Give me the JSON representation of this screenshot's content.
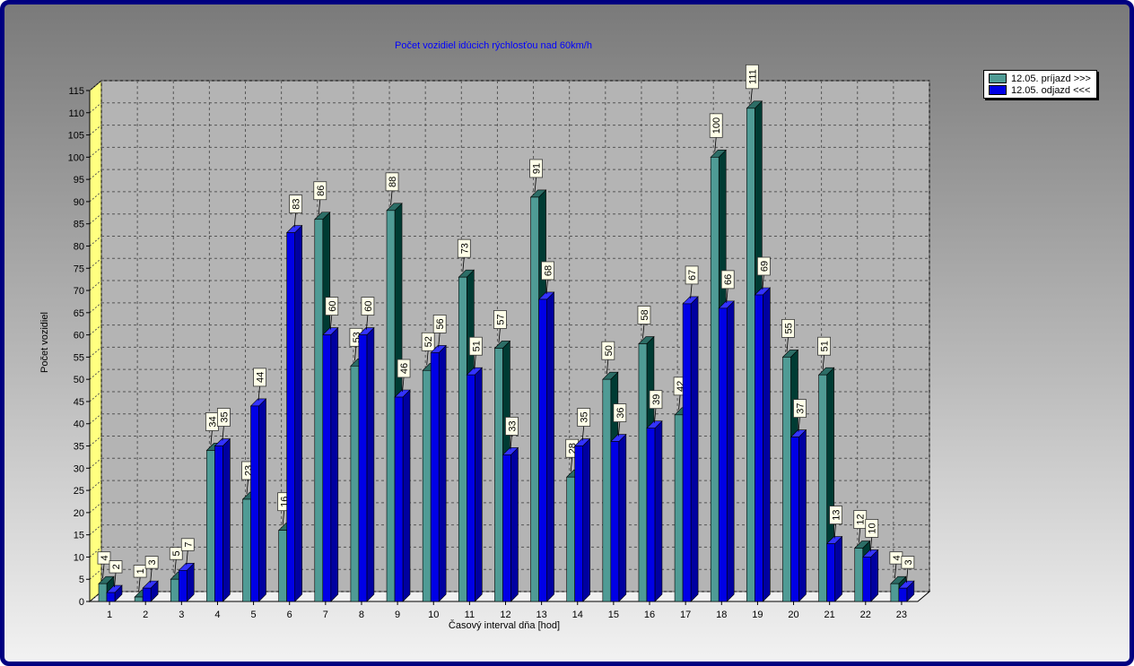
{
  "colors": {
    "frame_border": "#000080",
    "series1_front": "#4f9b95",
    "series1_side": "#003b33",
    "series1_top": "#2c6d66",
    "series2_front": "#0000e6",
    "series2_side": "#0000a0",
    "series2_top": "#3333ff",
    "left_wall": "#ffff80",
    "title_color": "#0000ff"
  },
  "chart_data": {
    "type": "bar",
    "style": "3d-clustered",
    "title": "Počet vozidiel idúcich rýchlosťou nad 60km/h",
    "xlabel": "Časový interval dňa [hod]",
    "ylabel": "Počet vozidiel",
    "ylim": [
      0,
      115
    ],
    "yticks": [
      0,
      5,
      10,
      15,
      20,
      25,
      30,
      35,
      40,
      45,
      50,
      55,
      60,
      65,
      70,
      75,
      80,
      85,
      90,
      95,
      100,
      105,
      110,
      115
    ],
    "grid": true,
    "legend_position": "top-right",
    "categories": [
      "1",
      "2",
      "3",
      "4",
      "5",
      "6",
      "7",
      "8",
      "9",
      "10",
      "11",
      "12",
      "13",
      "14",
      "15",
      "16",
      "17",
      "18",
      "19",
      "20",
      "21",
      "22",
      "23"
    ],
    "series": [
      {
        "name": "12.05.  príjazd >>>",
        "values": [
          4,
          1,
          5,
          34,
          23,
          16,
          86,
          53,
          88,
          52,
          73,
          57,
          91,
          28,
          50,
          58,
          42,
          100,
          111,
          55,
          51,
          12,
          4
        ]
      },
      {
        "name": "12.05.  odjazd <<<",
        "values": [
          2,
          3,
          7,
          35,
          44,
          83,
          60,
          60,
          46,
          56,
          51,
          33,
          68,
          35,
          36,
          39,
          67,
          66,
          69,
          37,
          13,
          10,
          3
        ]
      }
    ]
  }
}
